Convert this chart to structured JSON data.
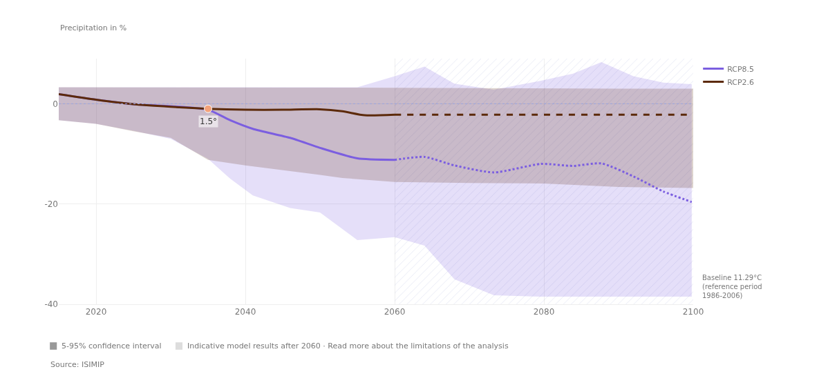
{
  "chart_data": {
    "type": "line",
    "ylabel": "Precipitation in %",
    "xlim": [
      2015,
      2100
    ],
    "xticks": [
      2020,
      2040,
      2060,
      2080,
      2100
    ],
    "ylim": [
      -40,
      9
    ],
    "yticks": [
      0,
      -20,
      -40
    ],
    "grid": true,
    "legend": "right",
    "marker": "none",
    "series": [
      {
        "name": "RCP8.5",
        "color": "#7b5ee0",
        "line_style": "solid",
        "x": [
          2015,
          2020,
          2025,
          2030,
          2035,
          2038,
          2041,
          2046,
          2050,
          2055,
          2060
        ],
        "values": [
          1.9,
          0.8,
          -0.1,
          -0.5,
          -1.2,
          -3.3,
          -5,
          -6.8,
          -8.8,
          -10.9,
          -11.2
        ],
        "lower": [
          -3.3,
          -4,
          -5.4,
          -7,
          -11,
          -15,
          -18.3,
          -20.8,
          -21.7,
          -27.2,
          -26.6
        ],
        "upper": [
          3.3,
          3.3,
          3.3,
          3.3,
          3.3,
          3.3,
          3.3,
          3.3,
          3.3,
          3.3,
          5.5
        ]
      },
      {
        "name": "RCP2.6",
        "color": "#5c2a0a",
        "line_style": "solid",
        "x": [
          2015,
          2020,
          2025,
          2030,
          2035,
          2040,
          2045,
          2050,
          2053,
          2056,
          2060
        ],
        "values": [
          1.9,
          0.8,
          -0.1,
          -0.6,
          -1.0,
          -1.2,
          -1.2,
          -1.1,
          -1.5,
          -2.3,
          -2.2
        ],
        "lower": [
          -3.3,
          -4,
          -5.5,
          -6.8,
          -11.2,
          -12.3,
          -13.3,
          -14.2,
          -14.8,
          -15.2,
          -15.6
        ],
        "upper": [
          3.3,
          3.3,
          3.3,
          3.3,
          3.3,
          3.3,
          3.3,
          3.3,
          3.3,
          3.2,
          3.2
        ]
      },
      {
        "color": "#7b5ee0",
        "line_style": "dotted",
        "x": [
          2060,
          2064,
          2068,
          2073.3,
          2079.6,
          2083.9,
          2087.7,
          2092,
          2096,
          2099.8
        ],
        "values": [
          -11.2,
          -10.6,
          -12.3,
          -13.7,
          -12,
          -12.4,
          -11.9,
          -14.5,
          -17.5,
          -19.6
        ],
        "lower": [
          -26.6,
          -28.3,
          -35,
          -38.2,
          -38.5,
          -38.5,
          -38.5,
          -38.5,
          -38.5,
          -38.5
        ],
        "upper": [
          5.5,
          7.4,
          4,
          2.8,
          4.6,
          6,
          8.3,
          5.5,
          4.2,
          3.9
        ]
      },
      {
        "color": "#5c2a0a",
        "line_style": "dashed",
        "x": [
          2060,
          2070,
          2080,
          2090,
          2100
        ],
        "values": [
          -2.2,
          -2.2,
          -2.2,
          -2.2,
          -2.2
        ],
        "lower": [
          -15.6,
          -15.8,
          -15.9,
          -16.6,
          -16.8
        ],
        "upper": [
          3.2,
          3.1,
          3.0,
          3.0,
          3.0
        ]
      },
      {
        "type": "scatter",
        "color": "#f4a27a",
        "marker": "circle",
        "x": [
          2035
        ],
        "values": [
          -1.0
        ]
      }
    ],
    "ref_lines": [
      {
        "axis": "y",
        "value": 0,
        "color": "#9aa6e0",
        "line_style": "dotted"
      }
    ],
    "bands": [
      {
        "axis": "x",
        "from": 2060,
        "to": 2100,
        "color": "#8f9bd0"
      }
    ],
    "annotations": [
      {
        "text": "1.5°",
        "x": 2035,
        "y": -1.0
      },
      "Baseline 11.29°C\n(reference period\n1986-2006)",
      "5-95% confidence interval",
      "Indicative model results after 2060 · Read more about the limitations of the analysis",
      "Source: ISIMIP"
    ]
  }
}
